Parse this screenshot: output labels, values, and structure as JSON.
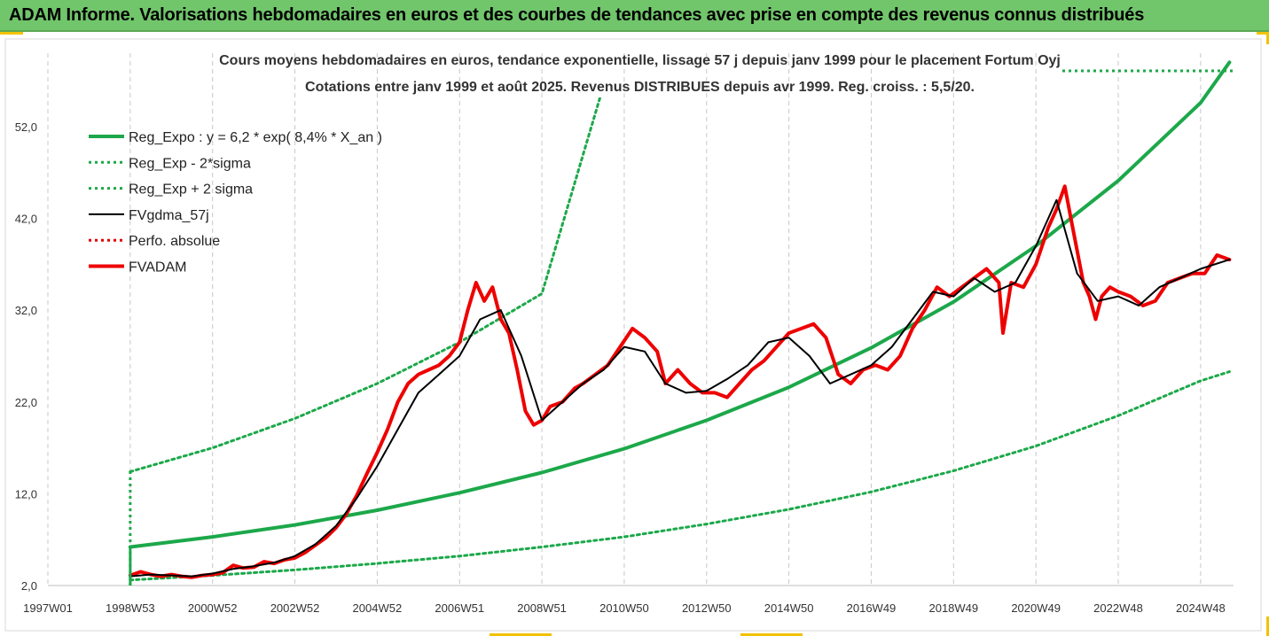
{
  "banner": {
    "title": "ADAM Informe. Valorisations hebdomadaires en euros et des courbes de tendances avec prise en compte des revenus connus distribués"
  },
  "chart_data": {
    "type": "line",
    "title": "Cours moyens hebdomadaires en euros, tendance exponentielle, lissage 57 j depuis janv 1999 pour le placement Fortum Oyj",
    "subtitle": "Cotations entre janv 1999 et août 2025. Revenus DISTRIBUES depuis avr 1999. Reg. croiss. : 5,5/20.",
    "xlabel": "",
    "ylabel": "",
    "x_range": [
      1997.0,
      2025.8
    ],
    "ylim": [
      2.0,
      60.0
    ],
    "y_ticks": [
      "2,0",
      "12,0",
      "22,0",
      "32,0",
      "42,0",
      "52,0"
    ],
    "x_ticks": [
      {
        "label": "1997W01",
        "x": 1997.0
      },
      {
        "label": "1998W53",
        "x": 1999.0
      },
      {
        "label": "2000W52",
        "x": 2001.0
      },
      {
        "label": "2002W52",
        "x": 2003.0
      },
      {
        "label": "2004W52",
        "x": 2005.0
      },
      {
        "label": "2006W51",
        "x": 2007.0
      },
      {
        "label": "2008W51",
        "x": 2009.0
      },
      {
        "label": "2010W50",
        "x": 2011.0
      },
      {
        "label": "2012W50",
        "x": 2013.0
      },
      {
        "label": "2014W50",
        "x": 2015.0
      },
      {
        "label": "2016W49",
        "x": 2017.0
      },
      {
        "label": "2018W49",
        "x": 2019.0
      },
      {
        "label": "2020W49",
        "x": 2021.0
      },
      {
        "label": "2022W48",
        "x": 2023.0
      },
      {
        "label": "2024W48",
        "x": 2025.0
      }
    ],
    "legend_position": "top-left",
    "series": [
      {
        "name": "Reg_Expo : y = 6,2 * exp( 8,4% *  X_an )",
        "style": "solid-thick",
        "color": "#1ca84a",
        "x": [
          1999.0,
          2001,
          2003,
          2005,
          2007,
          2009,
          2011,
          2013,
          2015,
          2017,
          2019,
          2021,
          2023,
          2025,
          2025.7
        ],
        "y": [
          6.2,
          7.3,
          8.6,
          10.2,
          12.1,
          14.3,
          16.9,
          20.0,
          23.6,
          27.9,
          32.9,
          39.0,
          46.1,
          54.6,
          59.0
        ]
      },
      {
        "name": "Reg_Exp - 2*sigma",
        "style": "dotted",
        "color": "#1ca84a",
        "x": [
          1999.0,
          2001,
          2003,
          2005,
          2007,
          2009,
          2011,
          2013,
          2015,
          2017,
          2019,
          2021,
          2023,
          2025,
          2025.7
        ],
        "y": [
          2.6,
          3.1,
          3.7,
          4.4,
          5.2,
          6.2,
          7.3,
          8.7,
          10.3,
          12.2,
          14.5,
          17.2,
          20.5,
          24.3,
          25.3
        ]
      },
      {
        "name": "Reg_Exp + 2 sigma",
        "style": "dotted",
        "color": "#1ca84a",
        "x": [
          1999.0,
          2001,
          2003,
          2005,
          2007,
          2009,
          2010.5
        ],
        "y": [
          14.4,
          17.0,
          20.2,
          24.0,
          28.5,
          33.8,
          56.5
        ]
      },
      {
        "name": "FVgdma_57j",
        "style": "solid",
        "color": "#000000",
        "x": [
          1999.0,
          1999.5,
          2000.0,
          2000.5,
          2001.0,
          2001.5,
          2002.0,
          2002.5,
          2003.0,
          2003.5,
          2004.0,
          2004.5,
          2005.0,
          2005.5,
          2006.0,
          2006.5,
          2007.0,
          2007.5,
          2008.0,
          2008.5,
          2009.0,
          2009.5,
          2010.0,
          2010.5,
          2011.0,
          2011.5,
          2012.0,
          2012.5,
          2013.0,
          2013.5,
          2014.0,
          2014.5,
          2015.0,
          2015.5,
          2016.0,
          2016.5,
          2017.0,
          2017.5,
          2018.0,
          2018.5,
          2019.0,
          2019.5,
          2020.0,
          2020.5,
          2021.0,
          2021.5,
          2022.0,
          2022.5,
          2023.0,
          2023.5,
          2024.0,
          2024.5,
          2025.0,
          2025.7
        ],
        "y": [
          3.0,
          3.2,
          3.1,
          3.0,
          3.3,
          3.8,
          4.1,
          4.5,
          5.2,
          6.5,
          8.5,
          11.5,
          15.0,
          19.0,
          23.0,
          25.0,
          27.0,
          31.0,
          32.0,
          27.0,
          20.0,
          22.0,
          24.0,
          25.5,
          28.0,
          27.5,
          24.0,
          23.0,
          23.2,
          24.5,
          26.0,
          28.5,
          29.0,
          27.0,
          24.0,
          25.0,
          26.0,
          28.0,
          31.0,
          34.0,
          33.5,
          35.5,
          34.0,
          35.0,
          39.0,
          44.0,
          36.0,
          33.0,
          33.5,
          32.5,
          34.5,
          35.5,
          36.5,
          37.5
        ]
      },
      {
        "name": "Perfo. absolue",
        "style": "dotted",
        "color": "#e00000",
        "x": [],
        "y": []
      },
      {
        "name": "FVADAM",
        "style": "solid-thick",
        "color": "#ee0000",
        "x": [
          1999.0,
          1999.25,
          1999.5,
          1999.75,
          2000.0,
          2000.25,
          2000.5,
          2000.75,
          2001.0,
          2001.25,
          2001.5,
          2001.75,
          2002.0,
          2002.25,
          2002.5,
          2002.75,
          2003.0,
          2003.25,
          2003.5,
          2003.75,
          2004.0,
          2004.25,
          2004.5,
          2004.75,
          2005.0,
          2005.25,
          2005.5,
          2005.75,
          2006.0,
          2006.25,
          2006.5,
          2006.75,
          2007.0,
          2007.2,
          2007.4,
          2007.6,
          2007.8,
          2008.0,
          2008.2,
          2008.4,
          2008.6,
          2008.8,
          2009.0,
          2009.2,
          2009.5,
          2009.8,
          2010.0,
          2010.3,
          2010.6,
          2010.9,
          2011.2,
          2011.5,
          2011.8,
          2012.0,
          2012.3,
          2012.6,
          2012.9,
          2013.2,
          2013.5,
          2013.8,
          2014.1,
          2014.4,
          2014.7,
          2015.0,
          2015.3,
          2015.6,
          2015.9,
          2016.2,
          2016.5,
          2016.8,
          2017.1,
          2017.4,
          2017.7,
          2018.0,
          2018.3,
          2018.6,
          2018.9,
          2019.2,
          2019.5,
          2019.8,
          2020.1,
          2020.2,
          2020.4,
          2020.7,
          2021.0,
          2021.3,
          2021.5,
          2021.7,
          2021.85,
          2022.0,
          2022.15,
          2022.3,
          2022.45,
          2022.6,
          2022.8,
          2023.0,
          2023.3,
          2023.6,
          2023.9,
          2024.2,
          2024.5,
          2024.8,
          2025.1,
          2025.4,
          2025.7
        ],
        "y": [
          3.1,
          3.5,
          3.2,
          3.0,
          3.2,
          3.0,
          2.9,
          3.1,
          3.2,
          3.4,
          4.2,
          3.9,
          4.0,
          4.6,
          4.4,
          4.8,
          5.0,
          5.6,
          6.4,
          7.2,
          8.3,
          9.8,
          11.8,
          14.2,
          16.5,
          19.0,
          22.0,
          24.0,
          25.0,
          25.5,
          26.0,
          27.0,
          28.5,
          32.0,
          35.0,
          33.0,
          34.5,
          31.0,
          29.5,
          25.5,
          21.0,
          19.5,
          20.0,
          21.5,
          22.0,
          23.5,
          24.0,
          25.0,
          26.0,
          28.0,
          30.0,
          29.0,
          27.5,
          24.0,
          25.5,
          24.0,
          23.0,
          23.0,
          22.5,
          24.0,
          25.5,
          26.5,
          28.0,
          29.5,
          30.0,
          30.5,
          29.0,
          25.0,
          24.0,
          25.5,
          26.0,
          25.5,
          27.0,
          30.0,
          32.0,
          34.5,
          33.5,
          34.5,
          35.5,
          36.5,
          35.0,
          29.5,
          35.0,
          34.5,
          37.0,
          41.0,
          43.0,
          45.5,
          42.0,
          38.5,
          35.0,
          33.5,
          31.0,
          33.5,
          34.5,
          34.0,
          33.5,
          32.5,
          33.0,
          35.0,
          35.5,
          36.0,
          36.0,
          38.0,
          37.5
        ]
      }
    ]
  }
}
